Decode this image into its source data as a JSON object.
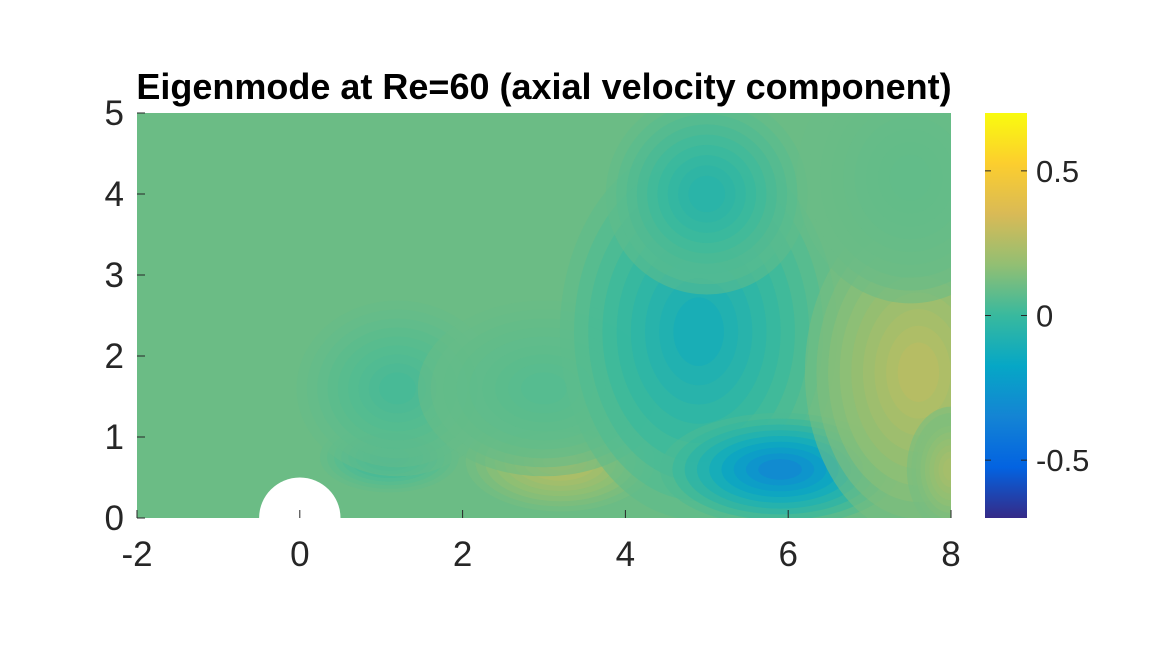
{
  "chart_data": {
    "type": "heatmap",
    "title": "Eigenmode at Re=60 (axial velocity component)",
    "xlabel": "",
    "ylabel": "",
    "xlim": [
      -2,
      8
    ],
    "ylim": [
      0,
      5
    ],
    "x_ticks": [
      "-2",
      "0",
      "2",
      "4",
      "6",
      "8"
    ],
    "y_ticks": [
      "0",
      "1",
      "2",
      "3",
      "4",
      "5"
    ],
    "colorbar": {
      "limits": [
        -0.7,
        0.7
      ],
      "ticks": [
        -0.5,
        0,
        0.5
      ],
      "tick_labels": [
        "-0.5",
        "0",
        "0.5"
      ],
      "colormap": "parula"
    },
    "cylinder": {
      "center_x": 0,
      "center_y": 0,
      "radius": 0.5
    },
    "background_value": 0.1,
    "features": [
      {
        "x": 1.1,
        "y": 0.75,
        "value": -0.05,
        "sx": 0.55,
        "sy": 0.28
      },
      {
        "x": 1.2,
        "y": 1.6,
        "value": 0.02,
        "sx": 0.8,
        "sy": 0.7
      },
      {
        "x": 3.2,
        "y": 0.7,
        "value": 0.32,
        "sx": 0.75,
        "sy": 0.4
      },
      {
        "x": 3.0,
        "y": 1.6,
        "value": 0.05,
        "sx": 1.0,
        "sy": 0.7
      },
      {
        "x": 4.9,
        "y": 2.3,
        "value": -0.15,
        "sx": 1.1,
        "sy": 1.5
      },
      {
        "x": 5.0,
        "y": 4.0,
        "value": -0.08,
        "sx": 0.8,
        "sy": 0.8
      },
      {
        "x": 5.9,
        "y": 0.6,
        "value": -0.4,
        "sx": 0.95,
        "sy": 0.45
      },
      {
        "x": 7.6,
        "y": 1.8,
        "value": 0.3,
        "sx": 0.9,
        "sy": 1.3
      },
      {
        "x": 8.0,
        "y": 0.6,
        "value": 0.25,
        "sx": 0.35,
        "sy": 0.5
      },
      {
        "x": 7.5,
        "y": 4.2,
        "value": 0.08,
        "sx": 0.9,
        "sy": 1.0
      }
    ]
  }
}
